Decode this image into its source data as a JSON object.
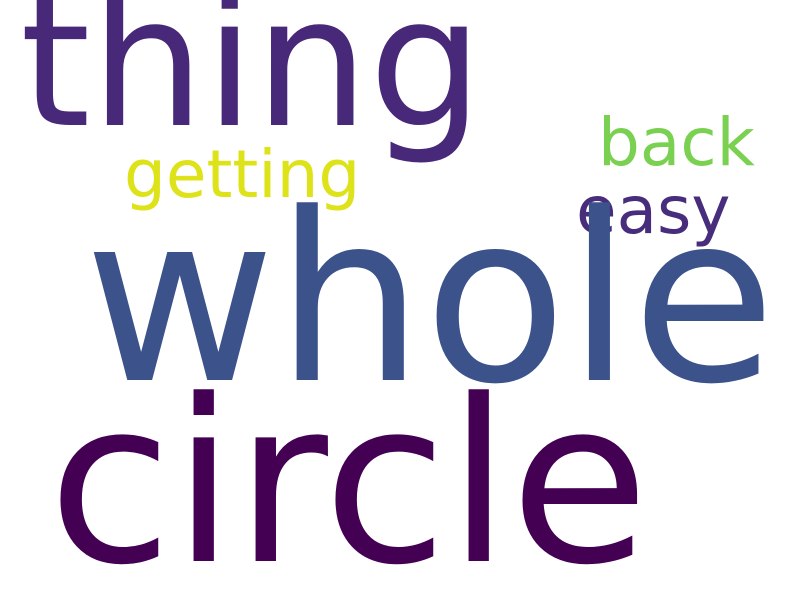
{
  "words": [
    {
      "text": "thing",
      "color": "#482878"
    },
    {
      "text": "back",
      "color": "#7ad151"
    },
    {
      "text": "getting",
      "color": "#dde318"
    },
    {
      "text": "easy",
      "color": "#472d7b"
    },
    {
      "text": "whole",
      "color": "#3b528b"
    },
    {
      "text": "circle",
      "color": "#440154"
    }
  ]
}
